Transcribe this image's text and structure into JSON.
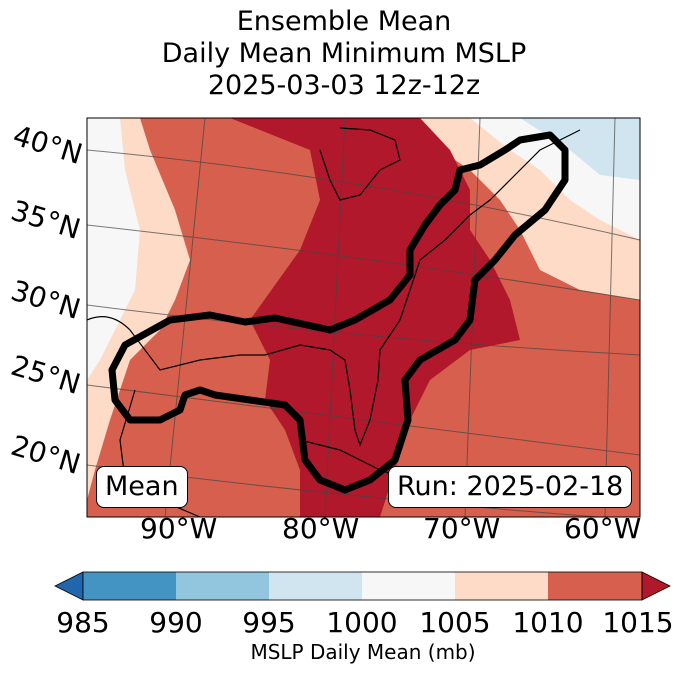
{
  "title": {
    "line1": "Ensemble Mean",
    "line2": "Daily Mean Minimum MSLP",
    "line3": "2025-03-03 12z-12z"
  },
  "map": {
    "lat_labels": [
      "40°N",
      "35°N",
      "30°N",
      "25°N",
      "20°N"
    ],
    "lon_labels": [
      "90°W",
      "80°W",
      "70°W",
      "60°W"
    ],
    "badge_left": "Mean",
    "badge_right": "Run: 2025-02-18",
    "colors": {
      "very_light_pink": "#fddbc7",
      "salmon": "#d6604d",
      "dark_red": "#b2182b",
      "near_white": "#f7f7f7",
      "light_blue": "#d1e5f0"
    },
    "contour_color": "#000000"
  },
  "colorbar": {
    "ticks": [
      "985",
      "990",
      "995",
      "1000",
      "1005",
      "1010",
      "1015"
    ],
    "label": "MSLP Daily Mean (mb)",
    "colors": [
      "#2166ac",
      "#4393c3",
      "#92c5de",
      "#d1e5f0",
      "#f7f7f7",
      "#fddbc7",
      "#d6604d",
      "#b2182b"
    ]
  }
}
